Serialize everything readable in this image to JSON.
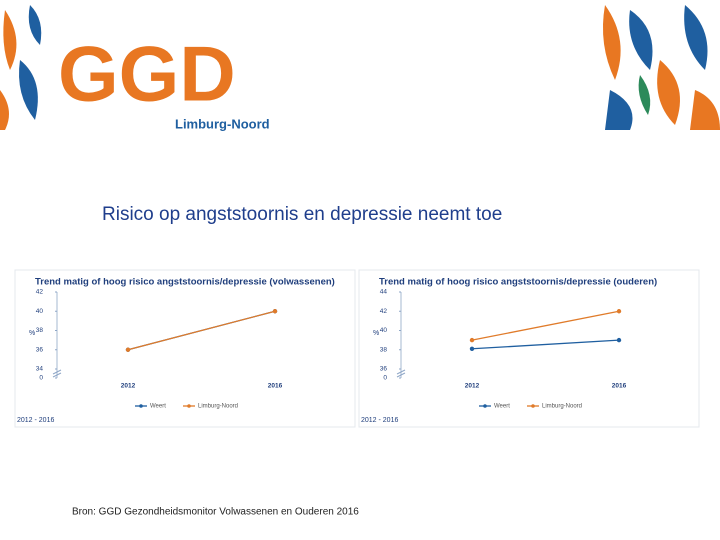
{
  "logo": {
    "name": "GGD",
    "region": "Limburg-Noord"
  },
  "title": "Risico op angststoornis en depressie neemt toe",
  "source": "Bron: GGD Gezondheidsmonitor Volwassenen en Ouderen 2016",
  "chart_data": [
    {
      "type": "line",
      "title": "Trend matig of hoog risico angststoornis/depressie (volwassenen)",
      "y_label": "%",
      "categories": [
        "2012",
        "2016"
      ],
      "series": [
        {
          "name": "Weert",
          "color": "#1f5fa0",
          "values": [
            36,
            40
          ]
        },
        {
          "name": "Limburg-Noord",
          "color": "#e07b2a",
          "values": [
            36,
            40
          ]
        }
      ],
      "ylim": [
        34,
        42
      ],
      "yticks": [
        0,
        34,
        36,
        38,
        40,
        42
      ],
      "axis_break": true,
      "footer": "2012 - 2016"
    },
    {
      "type": "line",
      "title": "Trend matig of hoog risico angststoornis/depressie (ouderen)",
      "y_label": "%",
      "categories": [
        "2012",
        "2016"
      ],
      "series": [
        {
          "name": "Weert",
          "color": "#1f5fa0",
          "values": [
            38.1,
            39
          ]
        },
        {
          "name": "Limburg-Noord",
          "color": "#e07b2a",
          "values": [
            39,
            42
          ]
        }
      ],
      "ylim": [
        36,
        44
      ],
      "yticks": [
        0,
        36,
        38,
        40,
        42,
        44
      ],
      "axis_break": true,
      "footer": "2012 - 2016"
    }
  ]
}
